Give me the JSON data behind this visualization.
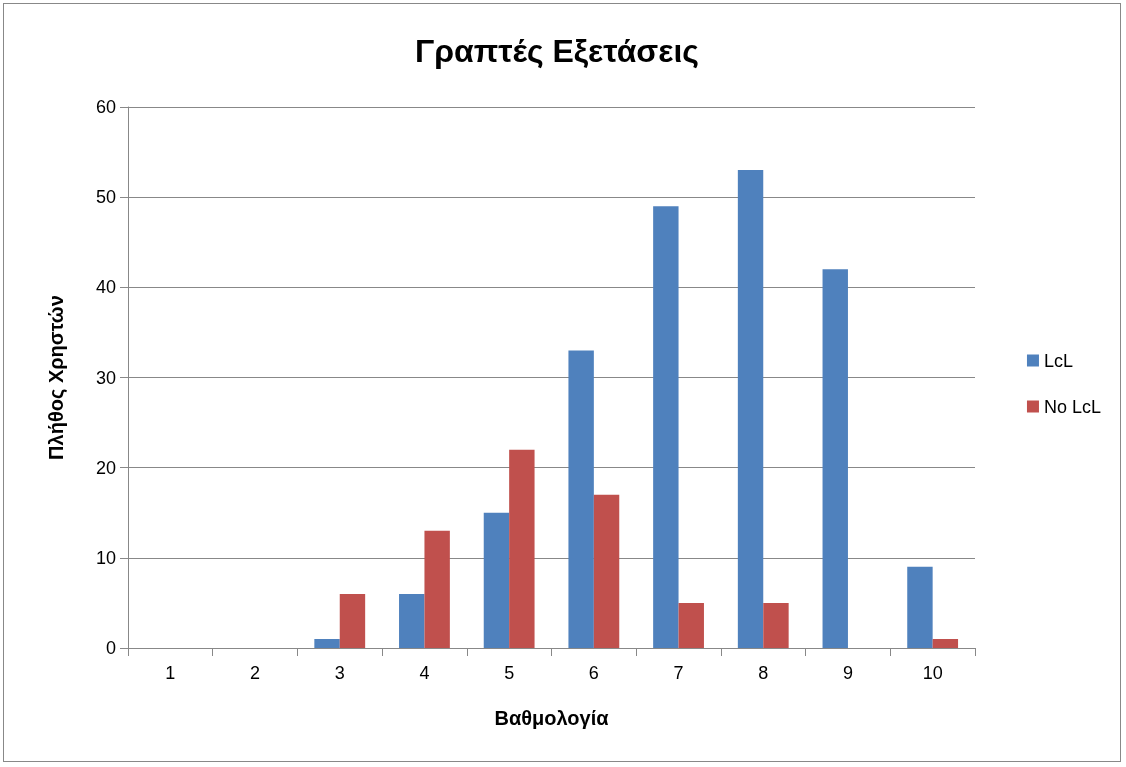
{
  "chart_data": {
    "type": "bar",
    "title": "Γραπτές Εξετάσεις",
    "xlabel": "Βαθμολογία",
    "ylabel": "Πλήθος Χρηστών",
    "categories": [
      "1",
      "2",
      "3",
      "4",
      "5",
      "6",
      "7",
      "8",
      "9",
      "10"
    ],
    "series": [
      {
        "name": "LcL",
        "color": "#4f81bd",
        "values": [
          0,
          0,
          1,
          6,
          15,
          33,
          49,
          53,
          42,
          9
        ]
      },
      {
        "name": "No LcL",
        "color": "#c0504d",
        "values": [
          0,
          0,
          6,
          13,
          22,
          17,
          5,
          5,
          0,
          1
        ]
      }
    ],
    "ylim": [
      0,
      60
    ],
    "yticks": [
      0,
      10,
      20,
      30,
      40,
      50,
      60
    ],
    "grid": "y",
    "legend": "right"
  }
}
